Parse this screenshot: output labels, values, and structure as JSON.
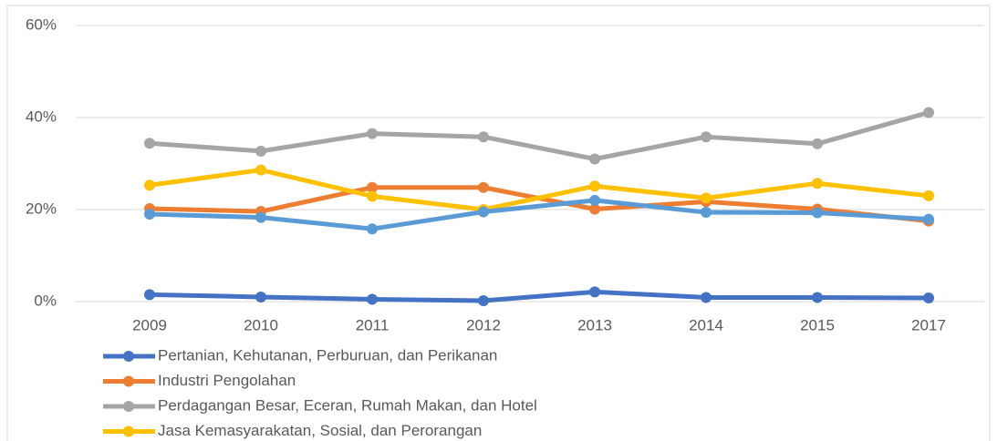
{
  "chart_data": {
    "type": "line",
    "categories": [
      "2009",
      "2010",
      "2011",
      "2012",
      "2013",
      "2014",
      "2015",
      "2017"
    ],
    "series": [
      {
        "name": "Pertanian, Kehutanan, Perburuan, dan Perikanan",
        "color": "#4472c4",
        "values": [
          1.5,
          1.0,
          0.5,
          0.2,
          2.1,
          0.9,
          0.9,
          0.8
        ]
      },
      {
        "name": "Industri Pengolahan",
        "color": "#ed7d31",
        "values": [
          20.2,
          19.6,
          24.8,
          24.8,
          20.1,
          21.7,
          20.1,
          17.5
        ]
      },
      {
        "name": "Perdagangan Besar, Eceran, Rumah Makan, dan Hotel",
        "color": "#a5a5a5",
        "values": [
          34.4,
          32.7,
          36.5,
          35.8,
          31.0,
          35.8,
          34.3,
          41.1
        ]
      },
      {
        "name": "Jasa Kemasyarakatan, Sosial, dan Perorangan",
        "color": "#ffc000",
        "values": [
          25.3,
          28.6,
          22.9,
          20.0,
          25.1,
          22.5,
          25.7,
          23.0
        ]
      },
      {
        "color": "#5b9bd5",
        "values": [
          19.0,
          18.3,
          15.8,
          19.5,
          22.0,
          19.4,
          19.3,
          17.9
        ]
      }
    ],
    "ylim": [
      0,
      60
    ],
    "yticks": [
      {
        "value": 0,
        "label": "0%"
      },
      {
        "value": 20,
        "label": "20%"
      },
      {
        "value": 40,
        "label": "40%"
      },
      {
        "value": 60,
        "label": "60%"
      }
    ],
    "grid": true
  }
}
